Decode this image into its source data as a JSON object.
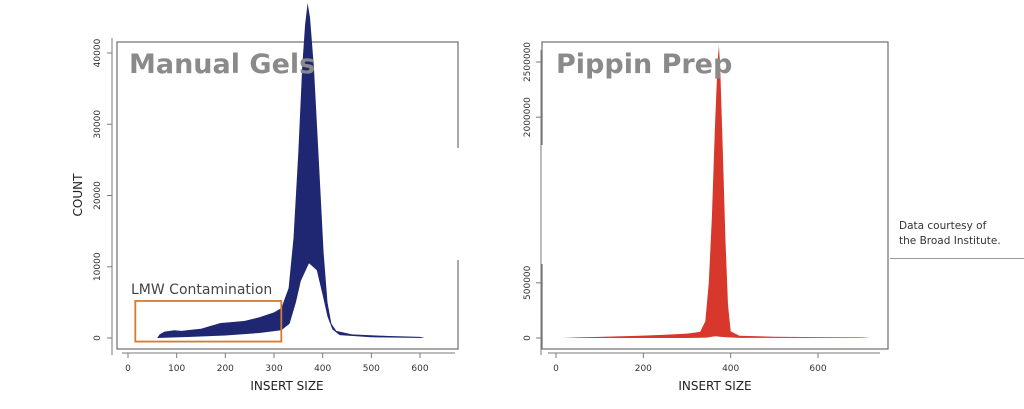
{
  "chart_data": [
    {
      "type": "area",
      "title": "Manual Gels",
      "xlabel": "INSERT SIZE",
      "ylabel": "COUNT",
      "xlim": [
        -25,
        680
      ],
      "ylim": [
        -2000,
        47000
      ],
      "xticks": [
        0,
        100,
        200,
        300,
        400,
        500,
        600
      ],
      "yticks": [
        0,
        10000,
        20000,
        30000,
        40000
      ],
      "color": "#1f2772",
      "annotation": {
        "text": "LMW Contamination",
        "box_x": [
          15,
          315
        ],
        "box_y": [
          -500,
          5200
        ],
        "color": "#d97a2e"
      },
      "series": [
        {
          "upper": [
            [
              60,
              0
            ],
            [
              65,
              500
            ],
            [
              75,
              900
            ],
            [
              95,
              1100
            ],
            [
              110,
              1000
            ],
            [
              130,
              1150
            ],
            [
              150,
              1300
            ],
            [
              170,
              1700
            ],
            [
              180,
              1900
            ],
            [
              190,
              2100
            ],
            [
              210,
              2200
            ],
            [
              240,
              2400
            ],
            [
              270,
              2900
            ],
            [
              300,
              3600
            ],
            [
              315,
              4200
            ],
            [
              330,
              7000
            ],
            [
              340,
              14000
            ],
            [
              350,
              26000
            ],
            [
              358,
              38000
            ],
            [
              364,
              44000
            ],
            [
              369,
              47000
            ],
            [
              374,
              45000
            ],
            [
              382,
              38000
            ],
            [
              392,
              25000
            ],
            [
              402,
              12000
            ],
            [
              410,
              5000
            ],
            [
              418,
              2000
            ],
            [
              428,
              1000
            ],
            [
              460,
              500
            ],
            [
              530,
              300
            ],
            [
              600,
              150
            ],
            [
              610,
              0
            ]
          ],
          "lower": [
            [
              60,
              0
            ],
            [
              130,
              150
            ],
            [
              200,
              350
            ],
            [
              270,
              700
            ],
            [
              315,
              1100
            ],
            [
              332,
              2000
            ],
            [
              345,
              5000
            ],
            [
              355,
              8000
            ],
            [
              372,
              10500
            ],
            [
              388,
              9500
            ],
            [
              400,
              6000
            ],
            [
              410,
              3000
            ],
            [
              420,
              1200
            ],
            [
              435,
              400
            ],
            [
              500,
              100
            ],
            [
              610,
              0
            ]
          ]
        }
      ]
    },
    {
      "type": "area",
      "title": "Pippin Prep",
      "xlabel": "INSERT SIZE",
      "ylabel": "",
      "xlim": [
        -25,
        760
      ],
      "ylim": [
        -100000,
        2750000
      ],
      "xticks": [
        0,
        200,
        400,
        600
      ],
      "yticks": [
        0,
        500000,
        2000000,
        2500000
      ],
      "color": "#d8382c",
      "series": [
        {
          "upper": [
            [
              15,
              0
            ],
            [
              50,
              5000
            ],
            [
              100,
              10000
            ],
            [
              150,
              15000
            ],
            [
              200,
              22000
            ],
            [
              250,
              30000
            ],
            [
              300,
              40000
            ],
            [
              330,
              55000
            ],
            [
              342,
              150000
            ],
            [
              350,
              500000
            ],
            [
              357,
              1100000
            ],
            [
              364,
              1900000
            ],
            [
              370,
              2500000
            ],
            [
              373,
              2650000
            ],
            [
              376,
              2450000
            ],
            [
              382,
              1700000
            ],
            [
              388,
              900000
            ],
            [
              394,
              300000
            ],
            [
              400,
              60000
            ],
            [
              420,
              20000
            ],
            [
              500,
              12000
            ],
            [
              600,
              8000
            ],
            [
              700,
              5000
            ],
            [
              720,
              0
            ]
          ],
          "lower": [
            [
              15,
              0
            ],
            [
              300,
              0
            ],
            [
              345,
              4000
            ],
            [
              355,
              10000
            ],
            [
              365,
              15000
            ],
            [
              375,
              12000
            ],
            [
              390,
              6000
            ],
            [
              420,
              1000
            ],
            [
              720,
              0
            ]
          ]
        }
      ]
    }
  ],
  "credit": {
    "line1": "Data courtesy of",
    "line2": "the Broad Institute."
  }
}
